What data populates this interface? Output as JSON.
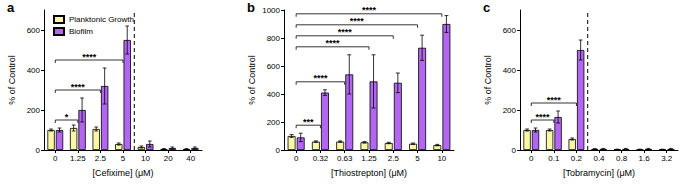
{
  "chart_data": [
    {
      "type": "bar",
      "title": "a",
      "x_label": "[Cefixime] (μM)",
      "y_label": "% of Control",
      "categories": [
        "0",
        "1.25",
        "2.5",
        "5",
        "10",
        "20",
        "40"
      ],
      "series": [
        {
          "name": "Planktonic Growth",
          "color": "#fbf7a6",
          "values": [
            100,
            110,
            105,
            30,
            15,
            5,
            5
          ],
          "errors": [
            5,
            15,
            10,
            5,
            5,
            2,
            2
          ]
        },
        {
          "name": "Biofilm",
          "color": "#b366f2",
          "values": [
            100,
            200,
            320,
            550,
            30,
            10,
            10
          ],
          "errors": [
            10,
            60,
            90,
            70,
            15,
            5,
            5
          ]
        }
      ],
      "ylim": [
        0,
        700
      ],
      "yticks": [
        0,
        200,
        400,
        600
      ],
      "grid": false,
      "legend": "upper left",
      "annotations": [
        {
          "type": "bracket",
          "from": "0",
          "to": "1.25",
          "label": "*"
        },
        {
          "type": "bracket",
          "from": "0",
          "to": "2.5",
          "label": "****"
        },
        {
          "type": "bracket",
          "from": "0",
          "to": "5",
          "label": "****"
        },
        {
          "type": "vline",
          "after": "5",
          "line_style": "dashed"
        }
      ]
    },
    {
      "type": "bar",
      "title": "b",
      "x_label": "[Thiostrepton] (μM)",
      "y_label": "% of Control",
      "categories": [
        "0",
        "0.32",
        "0.63",
        "1.25",
        "2.5",
        "5",
        "10"
      ],
      "series": [
        {
          "name": "Planktonic Growth",
          "color": "#fbf7a6",
          "values": [
            100,
            60,
            60,
            55,
            50,
            45,
            35
          ],
          "errors": [
            10,
            5,
            5,
            5,
            5,
            5,
            5
          ]
        },
        {
          "name": "Biofilm",
          "color": "#b366f2",
          "values": [
            90,
            410,
            540,
            490,
            480,
            730,
            900
          ],
          "errors": [
            30,
            20,
            140,
            190,
            70,
            90,
            60
          ]
        }
      ],
      "ylim": [
        0,
        1000
      ],
      "yticks": [
        0,
        200,
        400,
        600,
        800,
        1000
      ],
      "grid": false,
      "legend": false,
      "annotations": [
        {
          "type": "bracket",
          "from": "0",
          "to": "0.32",
          "label": "***"
        },
        {
          "type": "bracket",
          "from": "0",
          "to": "0.63",
          "label": "****"
        },
        {
          "type": "bracket",
          "from": "0",
          "to": "1.25",
          "label": "****"
        },
        {
          "type": "bracket",
          "from": "0",
          "to": "2.5",
          "label": "****"
        },
        {
          "type": "bracket",
          "from": "0",
          "to": "5",
          "label": "****"
        },
        {
          "type": "bracket",
          "from": "0",
          "to": "10",
          "label": "****"
        }
      ]
    },
    {
      "type": "bar",
      "title": "c",
      "x_label": "[Tobramycin] (μM)",
      "y_label": "% of Control",
      "categories": [
        "0",
        "0.1",
        "0.2",
        "0.4",
        "0.8",
        "1.6",
        "3.2"
      ],
      "series": [
        {
          "name": "Planktonic Growth",
          "color": "#fbf7a6",
          "values": [
            100,
            100,
            55,
            5,
            3,
            3,
            3
          ],
          "errors": [
            5,
            5,
            5,
            2,
            1,
            1,
            1
          ]
        },
        {
          "name": "Biofilm",
          "color": "#b366f2",
          "values": [
            100,
            165,
            500,
            5,
            5,
            5,
            5
          ],
          "errors": [
            10,
            30,
            50,
            3,
            3,
            3,
            3
          ]
        }
      ],
      "ylim": [
        0,
        700
      ],
      "yticks": [
        0,
        200,
        400,
        600
      ],
      "grid": false,
      "legend": false,
      "annotations": [
        {
          "type": "bracket",
          "from": "0",
          "to": "0.1",
          "label": "****"
        },
        {
          "type": "bracket",
          "from": "0",
          "to": "0.2",
          "label": "****"
        },
        {
          "type": "vline",
          "after": "0.2",
          "line_style": "dashed"
        }
      ]
    }
  ]
}
